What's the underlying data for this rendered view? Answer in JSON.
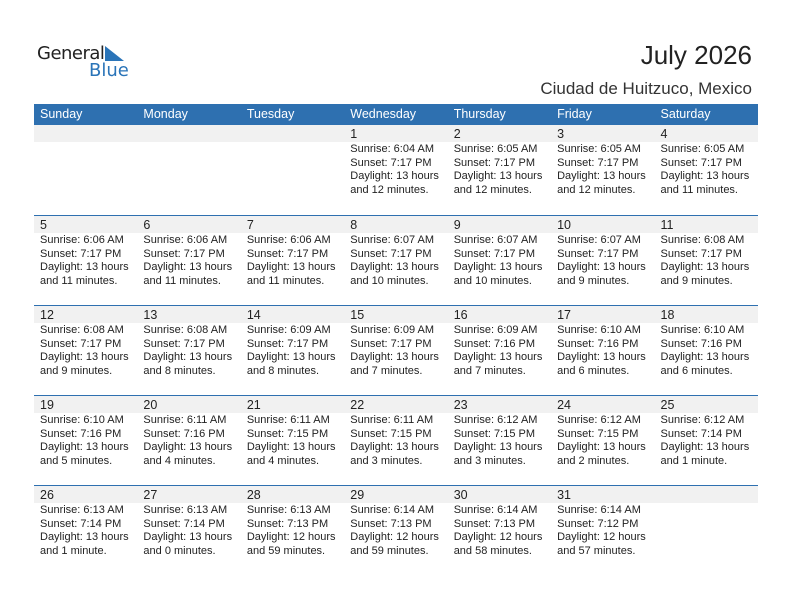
{
  "logo": {
    "general": "General",
    "blue": "Blue"
  },
  "title": "July 2026",
  "location": "Ciudad de Huitzuco, Mexico",
  "colors": {
    "header": "#2e70b0",
    "brand": "#2a74b8"
  },
  "weekdays": [
    "Sunday",
    "Monday",
    "Tuesday",
    "Wednesday",
    "Thursday",
    "Friday",
    "Saturday"
  ],
  "weeks": [
    [
      null,
      null,
      null,
      {
        "day": "1",
        "sunrise": "Sunrise: 6:04 AM",
        "sunset": "Sunset: 7:17 PM",
        "daylight1": "Daylight: 13 hours",
        "daylight2": "and 12 minutes."
      },
      {
        "day": "2",
        "sunrise": "Sunrise: 6:05 AM",
        "sunset": "Sunset: 7:17 PM",
        "daylight1": "Daylight: 13 hours",
        "daylight2": "and 12 minutes."
      },
      {
        "day": "3",
        "sunrise": "Sunrise: 6:05 AM",
        "sunset": "Sunset: 7:17 PM",
        "daylight1": "Daylight: 13 hours",
        "daylight2": "and 12 minutes."
      },
      {
        "day": "4",
        "sunrise": "Sunrise: 6:05 AM",
        "sunset": "Sunset: 7:17 PM",
        "daylight1": "Daylight: 13 hours",
        "daylight2": "and 11 minutes."
      }
    ],
    [
      {
        "day": "5",
        "sunrise": "Sunrise: 6:06 AM",
        "sunset": "Sunset: 7:17 PM",
        "daylight1": "Daylight: 13 hours",
        "daylight2": "and 11 minutes."
      },
      {
        "day": "6",
        "sunrise": "Sunrise: 6:06 AM",
        "sunset": "Sunset: 7:17 PM",
        "daylight1": "Daylight: 13 hours",
        "daylight2": "and 11 minutes."
      },
      {
        "day": "7",
        "sunrise": "Sunrise: 6:06 AM",
        "sunset": "Sunset: 7:17 PM",
        "daylight1": "Daylight: 13 hours",
        "daylight2": "and 11 minutes."
      },
      {
        "day": "8",
        "sunrise": "Sunrise: 6:07 AM",
        "sunset": "Sunset: 7:17 PM",
        "daylight1": "Daylight: 13 hours",
        "daylight2": "and 10 minutes."
      },
      {
        "day": "9",
        "sunrise": "Sunrise: 6:07 AM",
        "sunset": "Sunset: 7:17 PM",
        "daylight1": "Daylight: 13 hours",
        "daylight2": "and 10 minutes."
      },
      {
        "day": "10",
        "sunrise": "Sunrise: 6:07 AM",
        "sunset": "Sunset: 7:17 PM",
        "daylight1": "Daylight: 13 hours",
        "daylight2": "and 9 minutes."
      },
      {
        "day": "11",
        "sunrise": "Sunrise: 6:08 AM",
        "sunset": "Sunset: 7:17 PM",
        "daylight1": "Daylight: 13 hours",
        "daylight2": "and 9 minutes."
      }
    ],
    [
      {
        "day": "12",
        "sunrise": "Sunrise: 6:08 AM",
        "sunset": "Sunset: 7:17 PM",
        "daylight1": "Daylight: 13 hours",
        "daylight2": "and 9 minutes."
      },
      {
        "day": "13",
        "sunrise": "Sunrise: 6:08 AM",
        "sunset": "Sunset: 7:17 PM",
        "daylight1": "Daylight: 13 hours",
        "daylight2": "and 8 minutes."
      },
      {
        "day": "14",
        "sunrise": "Sunrise: 6:09 AM",
        "sunset": "Sunset: 7:17 PM",
        "daylight1": "Daylight: 13 hours",
        "daylight2": "and 8 minutes."
      },
      {
        "day": "15",
        "sunrise": "Sunrise: 6:09 AM",
        "sunset": "Sunset: 7:17 PM",
        "daylight1": "Daylight: 13 hours",
        "daylight2": "and 7 minutes."
      },
      {
        "day": "16",
        "sunrise": "Sunrise: 6:09 AM",
        "sunset": "Sunset: 7:16 PM",
        "daylight1": "Daylight: 13 hours",
        "daylight2": "and 7 minutes."
      },
      {
        "day": "17",
        "sunrise": "Sunrise: 6:10 AM",
        "sunset": "Sunset: 7:16 PM",
        "daylight1": "Daylight: 13 hours",
        "daylight2": "and 6 minutes."
      },
      {
        "day": "18",
        "sunrise": "Sunrise: 6:10 AM",
        "sunset": "Sunset: 7:16 PM",
        "daylight1": "Daylight: 13 hours",
        "daylight2": "and 6 minutes."
      }
    ],
    [
      {
        "day": "19",
        "sunrise": "Sunrise: 6:10 AM",
        "sunset": "Sunset: 7:16 PM",
        "daylight1": "Daylight: 13 hours",
        "daylight2": "and 5 minutes."
      },
      {
        "day": "20",
        "sunrise": "Sunrise: 6:11 AM",
        "sunset": "Sunset: 7:16 PM",
        "daylight1": "Daylight: 13 hours",
        "daylight2": "and 4 minutes."
      },
      {
        "day": "21",
        "sunrise": "Sunrise: 6:11 AM",
        "sunset": "Sunset: 7:15 PM",
        "daylight1": "Daylight: 13 hours",
        "daylight2": "and 4 minutes."
      },
      {
        "day": "22",
        "sunrise": "Sunrise: 6:11 AM",
        "sunset": "Sunset: 7:15 PM",
        "daylight1": "Daylight: 13 hours",
        "daylight2": "and 3 minutes."
      },
      {
        "day": "23",
        "sunrise": "Sunrise: 6:12 AM",
        "sunset": "Sunset: 7:15 PM",
        "daylight1": "Daylight: 13 hours",
        "daylight2": "and 3 minutes."
      },
      {
        "day": "24",
        "sunrise": "Sunrise: 6:12 AM",
        "sunset": "Sunset: 7:15 PM",
        "daylight1": "Daylight: 13 hours",
        "daylight2": "and 2 minutes."
      },
      {
        "day": "25",
        "sunrise": "Sunrise: 6:12 AM",
        "sunset": "Sunset: 7:14 PM",
        "daylight1": "Daylight: 13 hours",
        "daylight2": "and 1 minute."
      }
    ],
    [
      {
        "day": "26",
        "sunrise": "Sunrise: 6:13 AM",
        "sunset": "Sunset: 7:14 PM",
        "daylight1": "Daylight: 13 hours",
        "daylight2": "and 1 minute."
      },
      {
        "day": "27",
        "sunrise": "Sunrise: 6:13 AM",
        "sunset": "Sunset: 7:14 PM",
        "daylight1": "Daylight: 13 hours",
        "daylight2": "and 0 minutes."
      },
      {
        "day": "28",
        "sunrise": "Sunrise: 6:13 AM",
        "sunset": "Sunset: 7:13 PM",
        "daylight1": "Daylight: 12 hours",
        "daylight2": "and 59 minutes."
      },
      {
        "day": "29",
        "sunrise": "Sunrise: 6:14 AM",
        "sunset": "Sunset: 7:13 PM",
        "daylight1": "Daylight: 12 hours",
        "daylight2": "and 59 minutes."
      },
      {
        "day": "30",
        "sunrise": "Sunrise: 6:14 AM",
        "sunset": "Sunset: 7:13 PM",
        "daylight1": "Daylight: 12 hours",
        "daylight2": "and 58 minutes."
      },
      {
        "day": "31",
        "sunrise": "Sunrise: 6:14 AM",
        "sunset": "Sunset: 7:12 PM",
        "daylight1": "Daylight: 12 hours",
        "daylight2": "and 57 minutes."
      },
      null
    ]
  ]
}
